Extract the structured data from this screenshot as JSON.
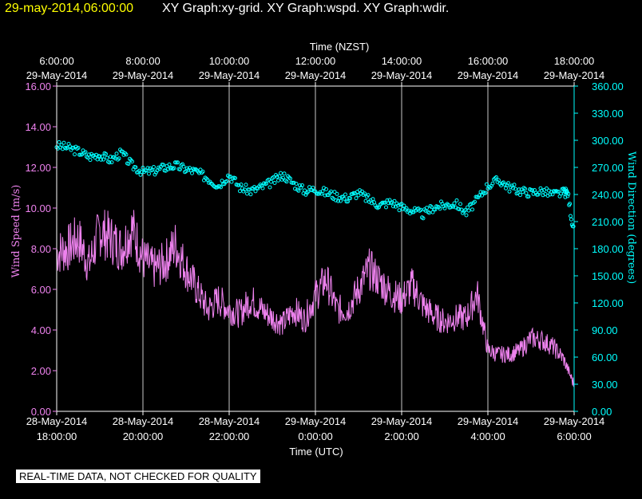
{
  "header": {
    "date_label": "29-may-2014,06:00:00",
    "graphs_label": "XY Graph:xy-grid.  XY Graph:wspd.  XY Graph:wdir."
  },
  "notice": "REAL-TIME DATA, NOT CHECKED FOR QUALITY",
  "colors": {
    "background": "#000000",
    "date_label": "#ffff00",
    "text": "#ffffff",
    "axis": "#ffffff",
    "grid": "#c8c8c8",
    "wind_speed": "#ee82ee",
    "wind_direction": "#00ffff"
  },
  "chart_data": {
    "type": "line",
    "top_axis": {
      "title": "Time (NZST)",
      "ticks": [
        {
          "hour": 0,
          "time": "6:00:00",
          "date": "29-May-2014"
        },
        {
          "hour": 2,
          "time": "8:00:00",
          "date": "29-May-2014"
        },
        {
          "hour": 4,
          "time": "10:00:00",
          "date": "29-May-2014"
        },
        {
          "hour": 6,
          "time": "12:00:00",
          "date": "29-May-2014"
        },
        {
          "hour": 8,
          "time": "14:00:00",
          "date": "29-May-2014"
        },
        {
          "hour": 10,
          "time": "16:00:00",
          "date": "29-May-2014"
        },
        {
          "hour": 12,
          "time": "18:00:00",
          "date": "29-May-2014"
        }
      ]
    },
    "bottom_axis": {
      "title": "Time (UTC)",
      "ticks": [
        {
          "hour": 0,
          "date": "28-May-2014",
          "time": "18:00:00"
        },
        {
          "hour": 2,
          "date": "28-May-2014",
          "time": "20:00:00"
        },
        {
          "hour": 4,
          "date": "28-May-2014",
          "time": "22:00:00"
        },
        {
          "hour": 6,
          "date": "29-May-2014",
          "time": "0:00:00"
        },
        {
          "hour": 8,
          "date": "29-May-2014",
          "time": "2:00:00"
        },
        {
          "hour": 10,
          "date": "29-May-2014",
          "time": "4:00:00"
        },
        {
          "hour": 12,
          "date": "29-May-2014",
          "time": "6:00:00"
        }
      ]
    },
    "x_range_hours": [
      0,
      12
    ],
    "left_axis": {
      "title": "Wind Speed (m/s)",
      "ylim": [
        0,
        16
      ],
      "ticks": [
        "0.00",
        "2.00",
        "4.00",
        "6.00",
        "8.00",
        "10.00",
        "12.00",
        "14.00",
        "16.00"
      ]
    },
    "right_axis": {
      "title": "Wind Direction (degrees)",
      "ylim": [
        0,
        360
      ],
      "ticks": [
        "0.00",
        "30.00",
        "60.00",
        "90.00",
        "120.00",
        "150.00",
        "180.00",
        "210.00",
        "240.00",
        "270.00",
        "300.00",
        "330.00",
        "360.00"
      ]
    },
    "series": [
      {
        "name": "wspd",
        "style": "line",
        "x": [
          0,
          0.25,
          0.5,
          0.75,
          1,
          1.25,
          1.5,
          1.75,
          2,
          2.25,
          2.5,
          2.75,
          3,
          3.25,
          3.5,
          3.75,
          4,
          4.25,
          4.5,
          4.75,
          5,
          5.25,
          5.5,
          5.75,
          6,
          6.25,
          6.5,
          6.75,
          7,
          7.25,
          7.5,
          7.75,
          8,
          8.25,
          8.5,
          8.75,
          9,
          9.25,
          9.5,
          9.75,
          10,
          10.25,
          10.5,
          10.75,
          11,
          11.25,
          11.5,
          11.75,
          12
        ],
        "values": [
          7.8,
          8.0,
          8.5,
          7.2,
          8.9,
          8.5,
          8.0,
          9.0,
          7.5,
          7.0,
          7.3,
          8.2,
          7.0,
          6.0,
          5.0,
          5.5,
          5.0,
          4.8,
          5.5,
          5.0,
          4.6,
          4.3,
          5.0,
          4.5,
          5.7,
          6.5,
          5.0,
          5.0,
          6.0,
          7.0,
          6.4,
          5.8,
          5.5,
          6.2,
          5.2,
          4.7,
          4.4,
          4.6,
          4.6,
          5.8,
          3.0,
          2.8,
          2.8,
          3.0,
          3.6,
          3.5,
          3.2,
          2.6,
          1.3
        ]
      },
      {
        "name": "wdir",
        "style": "markers",
        "x": [
          0,
          0.25,
          0.5,
          0.75,
          1,
          1.25,
          1.5,
          1.75,
          2,
          2.25,
          2.5,
          2.75,
          3,
          3.25,
          3.5,
          3.75,
          4,
          4.25,
          4.5,
          4.75,
          5,
          5.25,
          5.5,
          5.75,
          6,
          6.25,
          6.5,
          6.75,
          7,
          7.25,
          7.5,
          7.75,
          8,
          8.25,
          8.5,
          8.75,
          9,
          9.25,
          9.5,
          9.75,
          10,
          10.25,
          10.5,
          10.75,
          11,
          11.25,
          11.5,
          11.75,
          11.85,
          12
        ],
        "values": [
          294,
          292,
          288,
          282,
          284,
          278,
          286,
          272,
          265,
          266,
          270,
          272,
          268,
          265,
          258,
          250,
          262,
          248,
          244,
          248,
          254,
          262,
          252,
          244,
          246,
          242,
          238,
          236,
          242,
          234,
          228,
          232,
          226,
          222,
          218,
          226,
          228,
          230,
          220,
          234,
          250,
          256,
          248,
          244,
          242,
          244,
          240,
          242,
          242,
          195
        ]
      }
    ]
  }
}
